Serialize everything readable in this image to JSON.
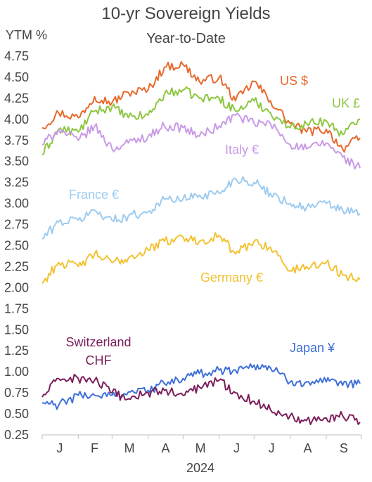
{
  "chart_data": {
    "type": "line",
    "title": "10-yr Sovereign Yields",
    "subtitle": "Year-to-Date",
    "ylabel": "YTM %",
    "xlabel": "2024",
    "ylim": [
      0.25,
      4.75
    ],
    "yticks": [
      "4.75",
      "4.50",
      "4.25",
      "4.00",
      "3.75",
      "3.50",
      "3.25",
      "3.00",
      "2.75",
      "2.50",
      "2.25",
      "2.00",
      "1.75",
      "1.50",
      "1.25",
      "1.00",
      "0.75",
      "0.50",
      "0.25"
    ],
    "xticks": [
      "J",
      "F",
      "M",
      "A",
      "M",
      "J",
      "J",
      "A",
      "S"
    ],
    "grid": false,
    "colors": {
      "us": "#E8682A",
      "uk": "#8DC63F",
      "italy": "#C99AE6",
      "france": "#9DCBF0",
      "germany": "#F2C232",
      "japan": "#3E6FD8",
      "switzerland": "#7B1E5A"
    },
    "series": [
      {
        "key": "us",
        "name": "US $",
        "color": "#E8682A",
        "x": [
          "2024-01-01",
          "2024-01-15",
          "2024-02-01",
          "2024-02-15",
          "2024-03-01",
          "2024-03-15",
          "2024-04-01",
          "2024-04-15",
          "2024-05-01",
          "2024-05-15",
          "2024-06-01",
          "2024-06-15",
          "2024-07-01",
          "2024-07-15",
          "2024-08-01",
          "2024-08-15",
          "2024-09-01",
          "2024-09-15",
          "2024-09-30"
        ],
        "values": [
          3.9,
          4.08,
          4.02,
          4.27,
          4.2,
          4.32,
          4.35,
          4.62,
          4.65,
          4.45,
          4.5,
          4.22,
          4.45,
          4.22,
          3.95,
          3.85,
          3.88,
          3.65,
          3.78
        ]
      },
      {
        "key": "uk",
        "name": "UK £",
        "color": "#8DC63F",
        "x": [
          "2024-01-01",
          "2024-01-15",
          "2024-02-01",
          "2024-02-15",
          "2024-03-01",
          "2024-03-15",
          "2024-04-01",
          "2024-04-15",
          "2024-05-01",
          "2024-05-15",
          "2024-06-01",
          "2024-06-15",
          "2024-07-01",
          "2024-07-15",
          "2024-08-01",
          "2024-08-15",
          "2024-09-01",
          "2024-09-15",
          "2024-09-30"
        ],
        "values": [
          3.58,
          3.88,
          3.85,
          4.1,
          4.15,
          4.02,
          4.05,
          4.3,
          4.35,
          4.25,
          4.25,
          4.1,
          4.22,
          4.08,
          3.9,
          3.95,
          3.98,
          3.82,
          4.0
        ]
      },
      {
        "key": "italy",
        "name": "Italy €",
        "color": "#C99AE6",
        "x": [
          "2024-01-01",
          "2024-01-15",
          "2024-02-01",
          "2024-02-15",
          "2024-03-01",
          "2024-03-15",
          "2024-04-01",
          "2024-04-15",
          "2024-05-01",
          "2024-05-15",
          "2024-06-01",
          "2024-06-15",
          "2024-07-01",
          "2024-07-15",
          "2024-08-01",
          "2024-08-15",
          "2024-09-01",
          "2024-09-15",
          "2024-09-30"
        ],
        "values": [
          3.7,
          3.88,
          3.75,
          3.92,
          3.65,
          3.72,
          3.8,
          3.92,
          3.9,
          3.8,
          3.92,
          4.05,
          3.95,
          3.95,
          3.7,
          3.65,
          3.72,
          3.55,
          3.42
        ]
      },
      {
        "key": "france",
        "name": "France €",
        "color": "#9DCBF0",
        "x": [
          "2024-01-01",
          "2024-01-15",
          "2024-02-01",
          "2024-02-15",
          "2024-03-01",
          "2024-03-15",
          "2024-04-01",
          "2024-04-15",
          "2024-05-01",
          "2024-05-15",
          "2024-06-01",
          "2024-06-15",
          "2024-07-01",
          "2024-07-15",
          "2024-08-01",
          "2024-08-15",
          "2024-09-01",
          "2024-09-15",
          "2024-09-30"
        ],
        "values": [
          2.58,
          2.78,
          2.8,
          2.92,
          2.8,
          2.85,
          2.9,
          3.05,
          3.05,
          3.1,
          3.12,
          3.3,
          3.25,
          3.12,
          3.0,
          2.95,
          3.0,
          2.92,
          2.88
        ]
      },
      {
        "key": "germany",
        "name": "Germany €",
        "color": "#F2C232",
        "x": [
          "2024-01-01",
          "2024-01-15",
          "2024-02-01",
          "2024-02-15",
          "2024-03-01",
          "2024-03-15",
          "2024-04-01",
          "2024-04-15",
          "2024-05-01",
          "2024-05-15",
          "2024-06-01",
          "2024-06-15",
          "2024-07-01",
          "2024-07-15",
          "2024-08-01",
          "2024-08-15",
          "2024-09-01",
          "2024-09-15",
          "2024-09-30"
        ],
        "values": [
          2.05,
          2.3,
          2.25,
          2.4,
          2.3,
          2.35,
          2.45,
          2.55,
          2.6,
          2.55,
          2.62,
          2.4,
          2.55,
          2.48,
          2.2,
          2.25,
          2.3,
          2.15,
          2.1
        ]
      },
      {
        "key": "japan",
        "name": "Japan ¥",
        "color": "#3E6FD8",
        "x": [
          "2024-01-01",
          "2024-01-15",
          "2024-02-01",
          "2024-02-15",
          "2024-03-01",
          "2024-03-15",
          "2024-04-01",
          "2024-04-15",
          "2024-05-01",
          "2024-05-15",
          "2024-06-01",
          "2024-06-15",
          "2024-07-01",
          "2024-07-15",
          "2024-08-01",
          "2024-08-15",
          "2024-09-01",
          "2024-09-15",
          "2024-09-30"
        ],
        "values": [
          0.63,
          0.6,
          0.72,
          0.72,
          0.72,
          0.76,
          0.78,
          0.86,
          0.92,
          0.98,
          1.02,
          1.02,
          1.08,
          1.05,
          0.88,
          0.88,
          0.88,
          0.84,
          0.86
        ]
      },
      {
        "key": "switzerland",
        "name": "Switzerland CHF",
        "color": "#7B1E5A",
        "x": [
          "2024-01-01",
          "2024-01-15",
          "2024-02-01",
          "2024-02-15",
          "2024-03-01",
          "2024-03-15",
          "2024-04-01",
          "2024-04-15",
          "2024-05-01",
          "2024-05-15",
          "2024-06-01",
          "2024-06-15",
          "2024-07-01",
          "2024-07-15",
          "2024-08-01",
          "2024-08-15",
          "2024-09-01",
          "2024-09-15",
          "2024-09-30"
        ],
        "values": [
          0.7,
          0.92,
          0.92,
          0.9,
          0.75,
          0.68,
          0.75,
          0.78,
          0.72,
          0.82,
          0.9,
          0.75,
          0.65,
          0.55,
          0.48,
          0.42,
          0.45,
          0.48,
          0.4
        ]
      }
    ],
    "annotations": [
      {
        "key": "us",
        "text": "US $"
      },
      {
        "key": "uk",
        "text": "UK £"
      },
      {
        "key": "italy",
        "text": "Italy €"
      },
      {
        "key": "france",
        "text": "France €"
      },
      {
        "key": "germany",
        "text": "Germany €"
      },
      {
        "key": "japan",
        "text": "Japan ¥"
      },
      {
        "key": "switzerland",
        "text": "Switzerland"
      },
      {
        "key": "switzerland",
        "text": "CHF"
      }
    ]
  }
}
